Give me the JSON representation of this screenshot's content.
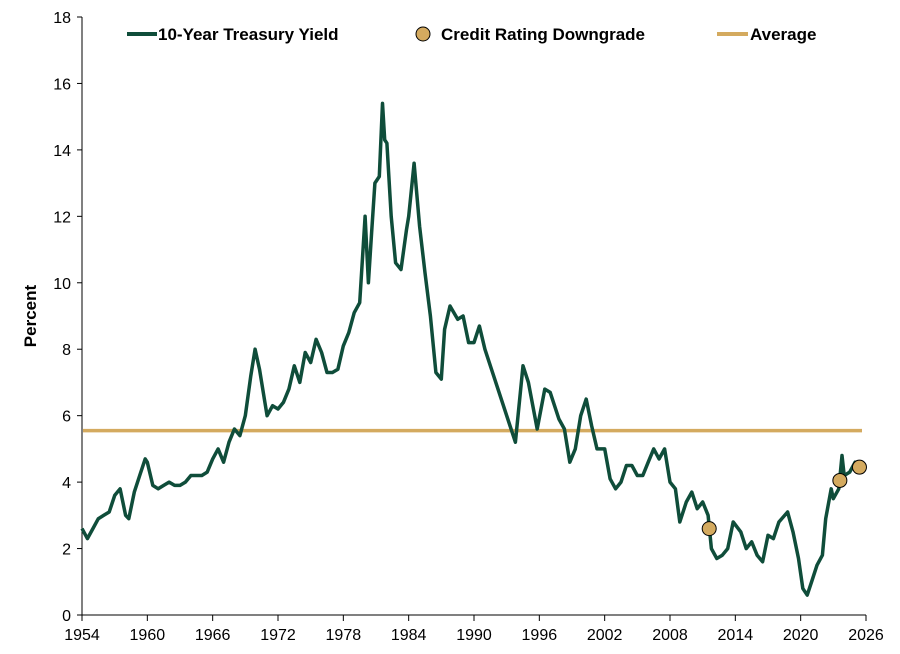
{
  "chart_data": {
    "type": "line",
    "title": "",
    "xlabel": "",
    "ylabel": "Percent",
    "xlim": [
      1954,
      2026
    ],
    "ylim": [
      0,
      18
    ],
    "x_ticks": [
      "1954",
      "1960",
      "1966",
      "1972",
      "1978",
      "1984",
      "1990",
      "1996",
      "2002",
      "2008",
      "2014",
      "2020",
      "2026"
    ],
    "y_ticks": [
      "0",
      "2",
      "4",
      "6",
      "8",
      "10",
      "12",
      "14",
      "16",
      "18"
    ],
    "grid": false,
    "legend_position": "top",
    "legend": {
      "line_label": "10-Year Treasury Yield",
      "marker_label": "Credit Rating Downgrade",
      "average_label": "Average"
    },
    "colors": {
      "yield_line": "#0f4d3a",
      "downgrade_marker": "#d4aa5f",
      "average_line": "#d4aa5f"
    },
    "series": [
      {
        "name": "10-Year Treasury Yield",
        "x": [
          1954.0,
          1954.5,
          1955.0,
          1955.5,
          1956.0,
          1956.5,
          1957.0,
          1957.5,
          1958.0,
          1958.3,
          1958.8,
          1959.3,
          1959.8,
          1960.0,
          1960.5,
          1961.0,
          1961.5,
          1962.0,
          1962.5,
          1963.0,
          1963.5,
          1964.0,
          1964.5,
          1965.0,
          1965.5,
          1966.0,
          1966.5,
          1967.0,
          1967.5,
          1968.0,
          1968.5,
          1969.0,
          1969.5,
          1969.9,
          1970.3,
          1970.8,
          1971.0,
          1971.5,
          1972.0,
          1972.5,
          1973.0,
          1973.5,
          1974.0,
          1974.5,
          1975.0,
          1975.5,
          1976.0,
          1976.5,
          1977.0,
          1977.5,
          1978.0,
          1978.5,
          1979.0,
          1979.5,
          1980.0,
          1980.3,
          1980.6,
          1980.9,
          1981.3,
          1981.6,
          1981.8,
          1982.0,
          1982.4,
          1982.8,
          1983.3,
          1983.8,
          1984.0,
          1984.5,
          1985.0,
          1985.5,
          1986.0,
          1986.5,
          1987.0,
          1987.3,
          1987.8,
          1988.5,
          1989.0,
          1989.5,
          1990.0,
          1990.5,
          1991.0,
          1992.0,
          1993.0,
          1993.8,
          1994.5,
          1995.0,
          1995.8,
          1996.5,
          1997.0,
          1997.8,
          1998.3,
          1998.8,
          1999.3,
          1999.8,
          2000.3,
          2000.8,
          2001.3,
          2002.0,
          2002.5,
          2003.0,
          2003.5,
          2004.0,
          2004.5,
          2005.0,
          2005.5,
          2006.0,
          2006.5,
          2007.0,
          2007.5,
          2008.0,
          2008.5,
          2008.9,
          2009.5,
          2010.0,
          2010.5,
          2011.0,
          2011.5,
          2011.8,
          2012.3,
          2012.8,
          2013.3,
          2013.8,
          2014.5,
          2015.0,
          2015.5,
          2016.0,
          2016.5,
          2017.0,
          2017.5,
          2018.0,
          2018.8,
          2019.3,
          2019.8,
          2020.2,
          2020.6,
          2021.0,
          2021.5,
          2022.0,
          2022.3,
          2022.8,
          2023.0,
          2023.5,
          2023.8,
          2024.0,
          2024.5,
          2025.0,
          2025.5
        ],
        "values": [
          2.6,
          2.3,
          2.6,
          2.9,
          3.0,
          3.1,
          3.6,
          3.8,
          3.0,
          2.9,
          3.7,
          4.2,
          4.7,
          4.6,
          3.9,
          3.8,
          3.9,
          4.0,
          3.9,
          3.9,
          4.0,
          4.2,
          4.2,
          4.2,
          4.3,
          4.7,
          5.0,
          4.6,
          5.2,
          5.6,
          5.4,
          6.0,
          7.2,
          8.0,
          7.4,
          6.4,
          6.0,
          6.3,
          6.2,
          6.4,
          6.8,
          7.5,
          7.0,
          7.9,
          7.6,
          8.3,
          7.9,
          7.3,
          7.3,
          7.4,
          8.1,
          8.5,
          9.1,
          9.4,
          12.0,
          10.0,
          11.5,
          13.0,
          13.2,
          15.4,
          14.3,
          14.2,
          12.0,
          10.6,
          10.4,
          11.6,
          12.0,
          13.6,
          11.7,
          10.3,
          9.0,
          7.3,
          7.1,
          8.6,
          9.3,
          8.9,
          9.0,
          8.2,
          8.2,
          8.7,
          8.0,
          7.0,
          6.0,
          5.2,
          7.5,
          7.0,
          5.6,
          6.8,
          6.7,
          5.9,
          5.6,
          4.6,
          5.0,
          6.0,
          6.5,
          5.7,
          5.0,
          5.0,
          4.1,
          3.8,
          4.0,
          4.5,
          4.5,
          4.2,
          4.2,
          4.6,
          5.0,
          4.7,
          5.0,
          4.0,
          3.8,
          2.8,
          3.4,
          3.7,
          3.2,
          3.4,
          3.0,
          2.0,
          1.7,
          1.8,
          2.0,
          2.8,
          2.5,
          2.0,
          2.2,
          1.8,
          1.6,
          2.4,
          2.3,
          2.8,
          3.1,
          2.5,
          1.7,
          0.8,
          0.6,
          1.0,
          1.5,
          1.8,
          2.9,
          3.8,
          3.5,
          3.8,
          4.8,
          4.2,
          4.3,
          4.6,
          4.4
        ],
        "average": 5.55
      },
      {
        "name": "Credit Rating Downgrade",
        "x": [
          2011.6,
          2023.6,
          2025.4
        ],
        "values": [
          2.6,
          4.05,
          4.45
        ]
      }
    ]
  }
}
